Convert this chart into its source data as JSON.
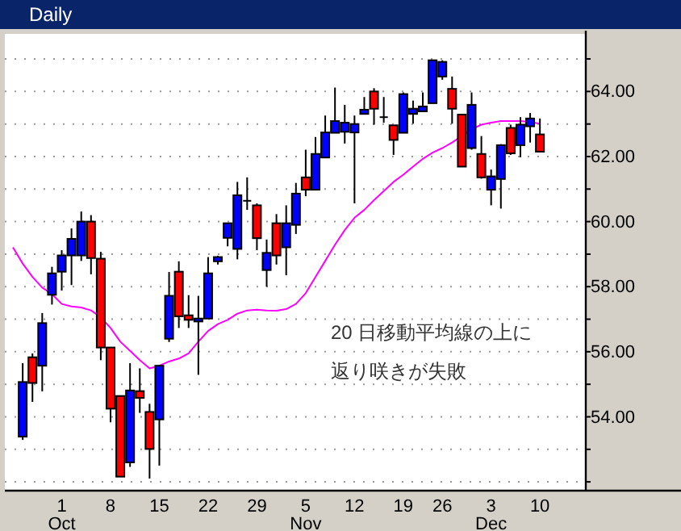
{
  "chart_data": {
    "type": "candlestick",
    "title": "Daily",
    "categories": [
      null,
      null,
      null,
      null,
      null,
      "1\nOct",
      null,
      null,
      null,
      null,
      "8",
      null,
      null,
      null,
      null,
      "15",
      null,
      null,
      null,
      null,
      "22",
      null,
      null,
      null,
      null,
      "29",
      null,
      null,
      null,
      null,
      "5\nNov",
      null,
      null,
      null,
      null,
      "12",
      null,
      null,
      null,
      null,
      "19",
      null,
      null,
      null,
      "26",
      null,
      null,
      null,
      null,
      "3\nDec",
      null,
      null,
      null,
      null,
      "10"
    ],
    "ohlc": [
      null,
      [
        53.39,
        55.65,
        53.29,
        55.07
      ],
      [
        55.83,
        55.95,
        54.46,
        55.04
      ],
      [
        55.57,
        57.19,
        54.78,
        56.88
      ],
      [
        57.75,
        58.61,
        57.45,
        58.41
      ],
      [
        58.46,
        59.12,
        57.88,
        58.96
      ],
      [
        58.96,
        59.79,
        58.05,
        59.47
      ],
      [
        58.96,
        60.31,
        58.79,
        60.0
      ],
      [
        60.0,
        60.2,
        58.38,
        58.88
      ],
      [
        58.86,
        59.07,
        55.74,
        56.13
      ],
      [
        56.13,
        56.13,
        53.83,
        54.25
      ],
      [
        54.64,
        54.64,
        52.16,
        52.16
      ],
      [
        52.6,
        55.65,
        52.46,
        54.81
      ],
      [
        54.79,
        55.49,
        54.12,
        54.58
      ],
      [
        54.15,
        54.4,
        52.1,
        53.01
      ],
      [
        53.92,
        55.6,
        52.5,
        55.57
      ],
      [
        56.4,
        58.45,
        56.3,
        57.72
      ],
      [
        58.46,
        58.78,
        56.73,
        57.09
      ],
      [
        57.12,
        57.74,
        56.73,
        56.98
      ],
      [
        56.93,
        57.72,
        55.29,
        57.02
      ],
      [
        57.02,
        58.91,
        57.02,
        58.41
      ],
      [
        58.78,
        58.95,
        58.68,
        58.91
      ],
      [
        59.5,
        59.95,
        59.24,
        59.95
      ],
      [
        59.16,
        61.22,
        58.84,
        60.81
      ],
      [
        60.64,
        61.36,
        60.36,
        60.64
      ],
      [
        60.5,
        60.56,
        59.12,
        59.49
      ],
      [
        58.51,
        59.45,
        58.0,
        59.04
      ],
      [
        59.95,
        60.23,
        58.68,
        58.96
      ],
      [
        59.21,
        60.5,
        58.35,
        59.95
      ],
      [
        59.9,
        61.19,
        59.62,
        60.86
      ],
      [
        61.36,
        62.21,
        60.78,
        60.98
      ],
      [
        60.98,
        62.6,
        60.98,
        62.08
      ],
      [
        61.97,
        63.26,
        61.97,
        62.74
      ],
      [
        62.73,
        64.12,
        62.73,
        63.09
      ],
      [
        62.76,
        63.59,
        62.4,
        63.04
      ],
      [
        62.74,
        63.26,
        60.56,
        63.0
      ],
      [
        63.31,
        63.83,
        63.31,
        63.44
      ],
      [
        64.0,
        64.1,
        62.98,
        63.47
      ],
      [
        63.21,
        63.83,
        63.04,
        63.21
      ],
      [
        62.96,
        62.96,
        62.05,
        62.51
      ],
      [
        62.73,
        63.97,
        62.73,
        63.92
      ],
      [
        63.31,
        63.72,
        63.01,
        63.47
      ],
      [
        63.39,
        63.97,
        63.39,
        63.54
      ],
      [
        63.64,
        64.96,
        63.64,
        64.96
      ],
      [
        64.46,
        64.96,
        64.36,
        64.91
      ],
      [
        64.08,
        64.46,
        63.01,
        63.47
      ],
      [
        63.29,
        63.29,
        61.69,
        61.69
      ],
      [
        62.26,
        63.97,
        62.21,
        63.59
      ],
      [
        62.08,
        62.63,
        61.32,
        61.36
      ],
      [
        60.98,
        61.6,
        60.5,
        61.39
      ],
      [
        61.31,
        62.38,
        60.4,
        62.35
      ],
      [
        62.88,
        62.98,
        62.05,
        62.1
      ],
      [
        62.35,
        63.21,
        61.98,
        62.98
      ],
      [
        62.93,
        63.34,
        62.43,
        63.17
      ],
      [
        62.68,
        63.17,
        62.15,
        62.15
      ]
    ],
    "colors": [
      null,
      "#0000ff",
      "#ff0000",
      "#0000ff",
      "#0000ff",
      "#0000ff",
      "#0000ff",
      "#0000ff",
      "#ff0000",
      "#ff0000",
      "#ff0000",
      "#ff0000",
      "#0000ff",
      "#ff0000",
      "#ff0000",
      "#0000ff",
      "#0000ff",
      "#ff0000",
      "#ff0000",
      "#0000ff",
      "#0000ff",
      "#0000ff",
      "#0000ff",
      "#0000ff",
      "#000000",
      "#ff0000",
      "#0000ff",
      "#ff0000",
      "#0000ff",
      "#0000ff",
      "#ff0000",
      "#0000ff",
      "#0000ff",
      "#0000ff",
      "#0000ff",
      "#0000ff",
      "#0000ff",
      "#ff0000",
      "#000000",
      "#ff0000",
      "#0000ff",
      "#0000ff",
      "#0000ff",
      "#0000ff",
      "#0000ff",
      "#ff0000",
      "#ff0000",
      "#0000ff",
      "#ff0000",
      "#0000ff",
      "#0000ff",
      "#ff0000",
      "#0000ff",
      "#0000ff",
      "#ff0000"
    ],
    "series": [
      {
        "type": "line",
        "color": "#ff00ff",
        "values": [
          59.21,
          58.71,
          58.3,
          57.97,
          57.77,
          57.47,
          57.39,
          57.36,
          57.27,
          57.06,
          56.73,
          56.31,
          56.03,
          55.74,
          55.49,
          55.57,
          55.7,
          55.79,
          55.95,
          56.31,
          56.64,
          56.85,
          56.98,
          57.17,
          57.27,
          57.29,
          57.27,
          57.26,
          57.31,
          57.47,
          57.8,
          58.3,
          58.79,
          59.29,
          59.74,
          60.12,
          60.36,
          60.66,
          60.94,
          61.22,
          61.44,
          61.69,
          61.93,
          62.12,
          62.26,
          62.43,
          62.63,
          62.84,
          62.98,
          63.04,
          63.09,
          63.09,
          63.09,
          63.06,
          63.01
        ]
      }
    ],
    "ylim": [
      51.73,
      65.77
    ],
    "yticks": [
      {
        "value": 52,
        "label": null
      },
      {
        "value": 53,
        "label": null
      },
      {
        "value": 54,
        "label": "54.00"
      },
      {
        "value": 55,
        "label": null
      },
      {
        "value": 56,
        "label": "56.00"
      },
      {
        "value": 57,
        "label": null
      },
      {
        "value": 58,
        "label": "58.00"
      },
      {
        "value": 59,
        "label": null
      },
      {
        "value": 60,
        "label": "60.00"
      },
      {
        "value": 61,
        "label": null
      },
      {
        "value": 62,
        "label": "62.00"
      },
      {
        "value": 63,
        "label": null
      },
      {
        "value": 64,
        "label": "64.00"
      },
      {
        "value": 65,
        "label": null
      }
    ],
    "grid": "y",
    "annotations": [
      "20 日移動平均線の上に",
      "返り咲きが失敗"
    ]
  }
}
